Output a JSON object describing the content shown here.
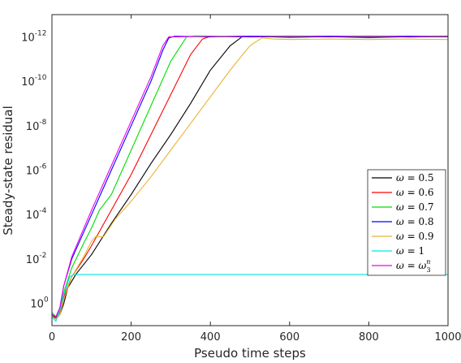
{
  "chart_data": {
    "type": "line",
    "title": "",
    "xlabel": "Pseudo time steps",
    "ylabel": "Steady-state residual",
    "xlim": [
      0,
      1000
    ],
    "ylim_log10": [
      -13,
      1
    ],
    "y_scale": "log",
    "grid": false,
    "legend_position": "right-lower",
    "x_ticks": [
      0,
      200,
      400,
      600,
      800,
      1000
    ],
    "x_tick_labels": [
      "0",
      "200",
      "400",
      "600",
      "800",
      "1000"
    ],
    "y_ticks_log10": [
      0,
      -2,
      -4,
      -6,
      -8,
      -10,
      -12
    ],
    "y_tick_labels": [
      {
        "base": "10",
        "exp": "0"
      },
      {
        "base": "10",
        "exp": "-2"
      },
      {
        "base": "10",
        "exp": "-4"
      },
      {
        "base": "10",
        "exp": "-6"
      },
      {
        "base": "10",
        "exp": "-8"
      },
      {
        "base": "10",
        "exp": "-10"
      },
      {
        "base": "10",
        "exp": "-12"
      }
    ],
    "series": [
      {
        "name": "ω = 0.5",
        "color": "#000000",
        "points": [
          [
            0,
            0.5
          ],
          [
            10,
            0.7
          ],
          [
            20,
            0.5
          ],
          [
            30,
            0.0
          ],
          [
            40,
            -0.7
          ],
          [
            60,
            -1.3
          ],
          [
            100,
            -2.2
          ],
          [
            150,
            -3.6
          ],
          [
            200,
            -4.9
          ],
          [
            250,
            -6.3
          ],
          [
            300,
            -7.6
          ],
          [
            350,
            -9.0
          ],
          [
            400,
            -10.5
          ],
          [
            450,
            -11.6
          ],
          [
            480,
            -12.0
          ],
          [
            500,
            -12.02
          ],
          [
            600,
            -11.98
          ],
          [
            700,
            -12.0
          ],
          [
            800,
            -11.97
          ],
          [
            900,
            -12.0
          ],
          [
            1000,
            -12.0
          ]
        ]
      },
      {
        "name": "ω = 0.6",
        "color": "#ff0000",
        "points": [
          [
            0,
            0.5
          ],
          [
            10,
            0.65
          ],
          [
            20,
            0.4
          ],
          [
            30,
            -0.3
          ],
          [
            50,
            -1.2
          ],
          [
            80,
            -2.0
          ],
          [
            100,
            -2.6
          ],
          [
            150,
            -4.2
          ],
          [
            200,
            -5.8
          ],
          [
            250,
            -7.6
          ],
          [
            300,
            -9.4
          ],
          [
            350,
            -11.2
          ],
          [
            380,
            -11.9
          ],
          [
            400,
            -12.02
          ],
          [
            500,
            -12.0
          ],
          [
            600,
            -12.03
          ],
          [
            700,
            -12.0
          ],
          [
            800,
            -12.02
          ],
          [
            900,
            -11.99
          ],
          [
            1000,
            -12.02
          ]
        ]
      },
      {
        "name": "ω = 0.7",
        "color": "#00dd00",
        "points": [
          [
            0,
            0.4
          ],
          [
            10,
            0.6
          ],
          [
            20,
            0.3
          ],
          [
            30,
            -0.5
          ],
          [
            50,
            -1.6
          ],
          [
            80,
            -2.7
          ],
          [
            100,
            -3.4
          ],
          [
            120,
            -4.2
          ],
          [
            150,
            -4.9
          ],
          [
            200,
            -6.9
          ],
          [
            250,
            -8.9
          ],
          [
            300,
            -10.9
          ],
          [
            340,
            -12.0
          ],
          [
            360,
            -12.04
          ],
          [
            500,
            -12.02
          ],
          [
            600,
            -12.04
          ],
          [
            700,
            -12.02
          ],
          [
            800,
            -12.04
          ],
          [
            900,
            -12.02
          ],
          [
            1000,
            -12.04
          ]
        ]
      },
      {
        "name": "ω = 0.8",
        "color": "#0000ff",
        "points": [
          [
            0,
            0.5
          ],
          [
            10,
            0.6
          ],
          [
            20,
            0.2
          ],
          [
            30,
            -0.8
          ],
          [
            50,
            -2.0
          ],
          [
            100,
            -4.0
          ],
          [
            150,
            -6.0
          ],
          [
            200,
            -8.0
          ],
          [
            250,
            -10.0
          ],
          [
            280,
            -11.4
          ],
          [
            295,
            -11.95
          ],
          [
            310,
            -12.03
          ],
          [
            400,
            -12.0
          ],
          [
            500,
            -12.03
          ],
          [
            600,
            -12.0
          ],
          [
            700,
            -12.03
          ],
          [
            800,
            -12.0
          ],
          [
            900,
            -12.03
          ],
          [
            1000,
            -12.0
          ]
        ]
      },
      {
        "name": "ω = 0.9",
        "color": "#eab530",
        "points": [
          [
            0,
            0.6
          ],
          [
            10,
            0.7
          ],
          [
            20,
            0.5
          ],
          [
            30,
            -0.2
          ],
          [
            50,
            -1.2
          ],
          [
            80,
            -2.1
          ],
          [
            100,
            -2.8
          ],
          [
            110,
            -3.0
          ],
          [
            130,
            -3.0
          ],
          [
            160,
            -3.8
          ],
          [
            200,
            -4.6
          ],
          [
            250,
            -5.7
          ],
          [
            300,
            -6.9
          ],
          [
            350,
            -8.1
          ],
          [
            400,
            -9.3
          ],
          [
            450,
            -10.5
          ],
          [
            500,
            -11.6
          ],
          [
            530,
            -11.95
          ],
          [
            560,
            -11.9
          ],
          [
            600,
            -11.88
          ],
          [
            700,
            -11.9
          ],
          [
            800,
            -11.88
          ],
          [
            900,
            -11.9
          ],
          [
            1000,
            -11.88
          ]
        ]
      },
      {
        "name": "ω = 1",
        "color": "#00e5e5",
        "points": [
          [
            0,
            0.6
          ],
          [
            10,
            0.8
          ],
          [
            20,
            0.3
          ],
          [
            30,
            -0.4
          ],
          [
            45,
            -1.2
          ],
          [
            55,
            -1.3
          ],
          [
            100,
            -1.3
          ],
          [
            200,
            -1.3
          ],
          [
            400,
            -1.3
          ],
          [
            600,
            -1.3
          ],
          [
            800,
            -1.3
          ],
          [
            1000,
            -1.3
          ]
        ]
      },
      {
        "name": "ω = ω3^n",
        "color": "#ee00ee",
        "points": [
          [
            0,
            0.5
          ],
          [
            10,
            0.6
          ],
          [
            20,
            0.2
          ],
          [
            30,
            -0.8
          ],
          [
            50,
            -2.1
          ],
          [
            100,
            -4.2
          ],
          [
            150,
            -6.2
          ],
          [
            200,
            -8.2
          ],
          [
            250,
            -10.2
          ],
          [
            280,
            -11.6
          ],
          [
            295,
            -12.0
          ],
          [
            310,
            -12.0
          ],
          [
            400,
            -12.02
          ],
          [
            500,
            -11.99
          ],
          [
            600,
            -12.01
          ],
          [
            700,
            -11.99
          ],
          [
            800,
            -12.01
          ],
          [
            900,
            -11.99
          ],
          [
            1000,
            -12.01
          ]
        ]
      }
    ],
    "legend": [
      {
        "var": "ω",
        "eq": " = ",
        "val": "0.5",
        "sup": "",
        "sub": ""
      },
      {
        "var": "ω",
        "eq": " = ",
        "val": "0.6",
        "sup": "",
        "sub": ""
      },
      {
        "var": "ω",
        "eq": " = ",
        "val": "0.7",
        "sup": "",
        "sub": ""
      },
      {
        "var": "ω",
        "eq": " = ",
        "val": "0.8",
        "sup": "",
        "sub": ""
      },
      {
        "var": "ω",
        "eq": " = ",
        "val": "0.9",
        "sup": "",
        "sub": ""
      },
      {
        "var": "ω",
        "eq": " = ",
        "val": "1",
        "sup": "",
        "sub": ""
      },
      {
        "var": "ω",
        "eq": " = ",
        "val": "ω",
        "sup": "n",
        "sub": "3"
      }
    ]
  }
}
